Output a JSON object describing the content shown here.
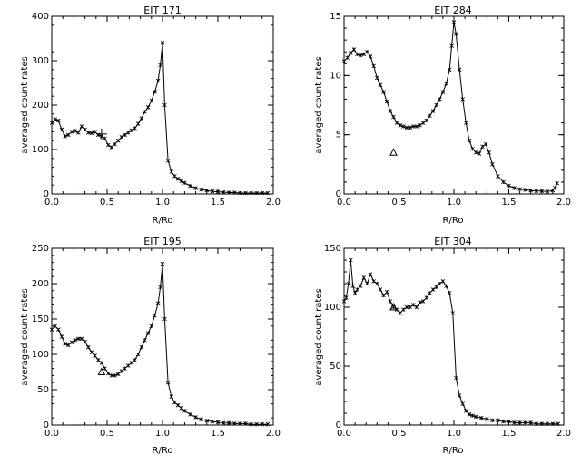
{
  "chart_data": [
    {
      "type": "line",
      "title": "EIT 171",
      "xlabel": "R/Ro",
      "ylabel": "averaged count rates",
      "xlim": [
        0,
        2
      ],
      "ylim": [
        0,
        400
      ],
      "xticks": [
        "0.0",
        "0.5",
        "1.0",
        "1.5",
        "2.0"
      ],
      "yticks": [
        "0",
        "100",
        "200",
        "300",
        "400"
      ],
      "series": [
        {
          "marker": "asterisk",
          "x": [
            0.0,
            0.03,
            0.06,
            0.09,
            0.12,
            0.15,
            0.18,
            0.21,
            0.24,
            0.27,
            0.3,
            0.33,
            0.36,
            0.39,
            0.42,
            0.45,
            0.48,
            0.51,
            0.54,
            0.57,
            0.6,
            0.63,
            0.66,
            0.69,
            0.72,
            0.75,
            0.78,
            0.81,
            0.84,
            0.87,
            0.9,
            0.93,
            0.96,
            0.98,
            1.0,
            1.02,
            1.05,
            1.08,
            1.11,
            1.14,
            1.17,
            1.2,
            1.25,
            1.3,
            1.35,
            1.4,
            1.45,
            1.5,
            1.55,
            1.6,
            1.65,
            1.7,
            1.75,
            1.8,
            1.85,
            1.9,
            1.95
          ],
          "y": [
            160,
            168,
            165,
            145,
            130,
            133,
            140,
            142,
            138,
            152,
            145,
            138,
            137,
            140,
            133,
            130,
            125,
            110,
            105,
            112,
            120,
            128,
            133,
            138,
            143,
            148,
            158,
            170,
            185,
            195,
            210,
            230,
            255,
            290,
            340,
            200,
            75,
            50,
            40,
            34,
            29,
            25,
            18,
            13,
            10,
            8,
            6,
            5,
            4,
            3,
            3,
            2,
            2,
            2,
            2,
            2,
            2
          ]
        }
      ],
      "annotations": [
        {
          "marker": "plus",
          "x": 0.45,
          "y": 135
        }
      ]
    },
    {
      "type": "line",
      "title": "EIT 284",
      "xlabel": "R/Ro",
      "ylabel": "averaged count rates",
      "xlim": [
        0,
        2
      ],
      "ylim": [
        0,
        15
      ],
      "xticks": [
        "0.0",
        "0.5",
        "1.0",
        "1.5",
        "2.0"
      ],
      "yticks": [
        "0",
        "5",
        "10",
        "15"
      ],
      "series": [
        {
          "marker": "asterisk",
          "x": [
            0.0,
            0.03,
            0.06,
            0.09,
            0.12,
            0.15,
            0.18,
            0.21,
            0.24,
            0.27,
            0.3,
            0.33,
            0.36,
            0.39,
            0.42,
            0.45,
            0.48,
            0.51,
            0.54,
            0.57,
            0.6,
            0.63,
            0.66,
            0.69,
            0.72,
            0.75,
            0.78,
            0.81,
            0.84,
            0.87,
            0.9,
            0.93,
            0.96,
            0.98,
            1.0,
            1.02,
            1.05,
            1.08,
            1.11,
            1.14,
            1.17,
            1.2,
            1.23,
            1.26,
            1.29,
            1.32,
            1.35,
            1.4,
            1.45,
            1.5,
            1.55,
            1.6,
            1.65,
            1.7,
            1.75,
            1.8,
            1.85,
            1.9,
            1.92,
            1.94
          ],
          "y": [
            11.2,
            11.5,
            11.9,
            12.2,
            11.8,
            11.7,
            11.8,
            12.0,
            11.6,
            10.8,
            9.8,
            9.2,
            8.6,
            7.8,
            7.0,
            6.5,
            6.0,
            5.8,
            5.7,
            5.6,
            5.6,
            5.7,
            5.7,
            5.8,
            6.0,
            6.2,
            6.6,
            7.0,
            7.5,
            8.0,
            8.6,
            9.3,
            10.5,
            12.5,
            14.5,
            13.5,
            10.5,
            8.0,
            6.0,
            4.5,
            3.8,
            3.5,
            3.4,
            4.0,
            4.2,
            3.5,
            2.5,
            1.5,
            1.0,
            0.7,
            0.5,
            0.4,
            0.35,
            0.3,
            0.25,
            0.25,
            0.2,
            0.3,
            0.5,
            0.9
          ]
        }
      ],
      "annotations": [
        {
          "marker": "triangle",
          "x": 0.45,
          "y": 3.5
        }
      ]
    },
    {
      "type": "line",
      "title": "EIT 195",
      "xlabel": "R/Ro",
      "ylabel": "averaged count rates",
      "xlim": [
        0,
        2
      ],
      "ylim": [
        0,
        250
      ],
      "xticks": [
        "0.0",
        "0.5",
        "1.0",
        "1.5",
        "2.0"
      ],
      "yticks": [
        "0",
        "50",
        "100",
        "150",
        "200",
        "250"
      ],
      "series": [
        {
          "marker": "asterisk",
          "x": [
            0.0,
            0.03,
            0.06,
            0.09,
            0.12,
            0.15,
            0.18,
            0.21,
            0.24,
            0.27,
            0.3,
            0.33,
            0.36,
            0.39,
            0.42,
            0.45,
            0.48,
            0.51,
            0.54,
            0.57,
            0.6,
            0.63,
            0.66,
            0.69,
            0.72,
            0.75,
            0.78,
            0.81,
            0.84,
            0.87,
            0.9,
            0.93,
            0.96,
            0.98,
            1.0,
            1.02,
            1.05,
            1.08,
            1.11,
            1.14,
            1.17,
            1.2,
            1.25,
            1.3,
            1.35,
            1.4,
            1.45,
            1.5,
            1.55,
            1.6,
            1.65,
            1.7,
            1.75,
            1.8,
            1.85,
            1.9,
            1.95
          ],
          "y": [
            135,
            140,
            135,
            125,
            115,
            113,
            117,
            120,
            122,
            122,
            118,
            110,
            103,
            98,
            92,
            88,
            80,
            73,
            70,
            70,
            72,
            76,
            80,
            84,
            88,
            92,
            100,
            110,
            120,
            130,
            140,
            155,
            172,
            195,
            228,
            150,
            60,
            40,
            32,
            28,
            24,
            20,
            15,
            11,
            8,
            6,
            5,
            4,
            3,
            3,
            2,
            2,
            2,
            1,
            1,
            1,
            1
          ]
        }
      ],
      "annotations": [
        {
          "marker": "triangle",
          "x": 0.45,
          "y": 75
        }
      ]
    },
    {
      "type": "line",
      "title": "EIT 304",
      "xlabel": "R/Ro",
      "ylabel": "averaged count rates",
      "xlim": [
        0,
        2
      ],
      "ylim": [
        0,
        150
      ],
      "xticks": [
        "0.0",
        "0.5",
        "1.0",
        "1.5",
        "2.0"
      ],
      "yticks": [
        "0",
        "50",
        "100",
        "150"
      ],
      "series": [
        {
          "marker": "asterisk",
          "x": [
            0.0,
            0.02,
            0.04,
            0.06,
            0.08,
            0.1,
            0.12,
            0.15,
            0.18,
            0.21,
            0.24,
            0.27,
            0.3,
            0.33,
            0.36,
            0.39,
            0.42,
            0.45,
            0.48,
            0.51,
            0.54,
            0.57,
            0.6,
            0.63,
            0.66,
            0.69,
            0.72,
            0.75,
            0.78,
            0.81,
            0.84,
            0.87,
            0.9,
            0.93,
            0.96,
            0.99,
            1.02,
            1.05,
            1.08,
            1.11,
            1.14,
            1.17,
            1.2,
            1.25,
            1.3,
            1.35,
            1.4,
            1.45,
            1.5,
            1.55,
            1.6,
            1.65,
            1.7,
            1.75,
            1.8,
            1.85,
            1.9,
            1.95
          ],
          "y": [
            105,
            108,
            120,
            140,
            118,
            112,
            115,
            118,
            125,
            120,
            128,
            122,
            120,
            115,
            110,
            113,
            105,
            100,
            98,
            95,
            98,
            100,
            100,
            102,
            100,
            104,
            105,
            108,
            112,
            115,
            117,
            120,
            122,
            118,
            112,
            95,
            40,
            25,
            18,
            12,
            9,
            8,
            7,
            6,
            5,
            4,
            4,
            3,
            3,
            2,
            2,
            2,
            2,
            1,
            1,
            1,
            1,
            1
          ]
        }
      ],
      "annotations": [
        {
          "marker": "triangle",
          "x": 0.45,
          "y": 100
        }
      ]
    }
  ]
}
